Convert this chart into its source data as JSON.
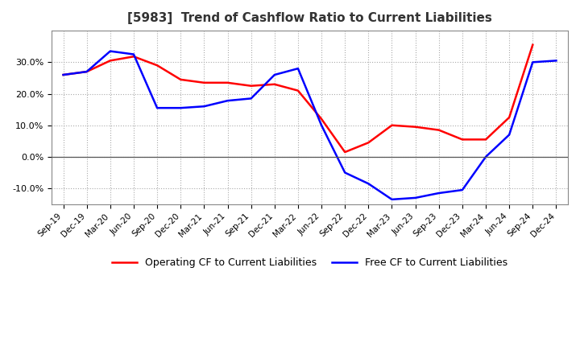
{
  "title": "[5983]  Trend of Cashflow Ratio to Current Liabilities",
  "x_labels": [
    "Sep-19",
    "Dec-19",
    "Mar-20",
    "Jun-20",
    "Sep-20",
    "Dec-20",
    "Mar-21",
    "Jun-21",
    "Sep-21",
    "Dec-21",
    "Mar-22",
    "Jun-22",
    "Sep-22",
    "Dec-22",
    "Mar-23",
    "Jun-23",
    "Sep-23",
    "Dec-23",
    "Mar-24",
    "Jun-24",
    "Sep-24",
    "Dec-24"
  ],
  "operating_cf": [
    26.0,
    27.0,
    30.5,
    31.8,
    29.0,
    24.5,
    23.5,
    23.5,
    22.5,
    23.0,
    21.0,
    12.0,
    1.5,
    4.5,
    10.0,
    9.5,
    8.5,
    5.5,
    5.5,
    12.5,
    35.5,
    null
  ],
  "free_cf": [
    26.0,
    27.0,
    33.5,
    32.5,
    15.5,
    15.5,
    16.0,
    17.8,
    18.5,
    26.0,
    28.0,
    10.0,
    -5.0,
    -8.5,
    -13.5,
    -13.0,
    -11.5,
    -10.5,
    0.0,
    7.0,
    30.0,
    30.5
  ],
  "operating_color": "#ff0000",
  "free_color": "#0000ff",
  "ylim": [
    -15,
    40
  ],
  "yticks": [
    -10.0,
    0.0,
    10.0,
    20.0,
    30.0
  ],
  "bg_color": "#ffffff",
  "plot_bg_color": "#ffffff",
  "grid_color": "#aaaaaa",
  "legend_labels": [
    "Operating CF to Current Liabilities",
    "Free CF to Current Liabilities"
  ]
}
